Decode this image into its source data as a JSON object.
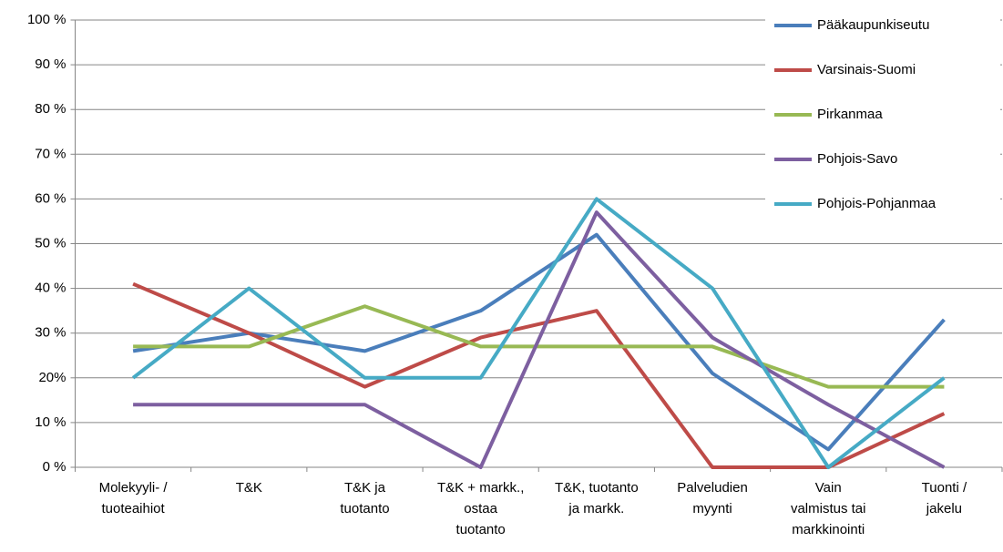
{
  "chart_data": {
    "type": "line",
    "categories": [
      "Molekyyli- /\ntuoteaihiot",
      "T&K",
      "T&K ja\ntuotanto",
      "T&K + markk.,\nostaa\ntuotanto",
      "T&K, tuotanto\nja markk.",
      "Palveludien\nmyynti",
      "Vain\nvalmistus tai\nmarkkinointi",
      "Tuonti /\njakelu"
    ],
    "series": [
      {
        "name": "Pääkaupunkiseutu",
        "color": "#4a7ebb",
        "values": [
          26,
          30,
          26,
          35,
          52,
          21,
          4,
          33
        ]
      },
      {
        "name": "Varsinais-Suomi",
        "color": "#be4b48",
        "values": [
          41,
          30,
          18,
          29,
          35,
          0,
          0,
          12
        ]
      },
      {
        "name": "Pirkanmaa",
        "color": "#98b954",
        "values": [
          27,
          27,
          36,
          27,
          27,
          27,
          18,
          18
        ]
      },
      {
        "name": "Pohjois-Savo",
        "color": "#7d5fa0",
        "values": [
          14,
          14,
          14,
          0,
          57,
          29,
          14,
          0
        ]
      },
      {
        "name": "Pohjois-Pohjanmaa",
        "color": "#46aac5",
        "values": [
          20,
          40,
          20,
          20,
          60,
          40,
          0,
          20
        ]
      }
    ],
    "ylim": [
      0,
      100
    ],
    "yticks": [
      {
        "value": 0,
        "label": "0 %"
      },
      {
        "value": 10,
        "label": "10 %"
      },
      {
        "value": 20,
        "label": "20%"
      },
      {
        "value": 30,
        "label": "30 %"
      },
      {
        "value": 40,
        "label": "40 %"
      },
      {
        "value": 50,
        "label": "50 %"
      },
      {
        "value": 60,
        "label": "60 %"
      },
      {
        "value": 70,
        "label": "70 %"
      },
      {
        "value": 80,
        "label": "80 %"
      },
      {
        "value": 90,
        "label": "90 %"
      },
      {
        "value": 100,
        "label": "100 %"
      }
    ],
    "grid": true,
    "legend": "top-right"
  }
}
